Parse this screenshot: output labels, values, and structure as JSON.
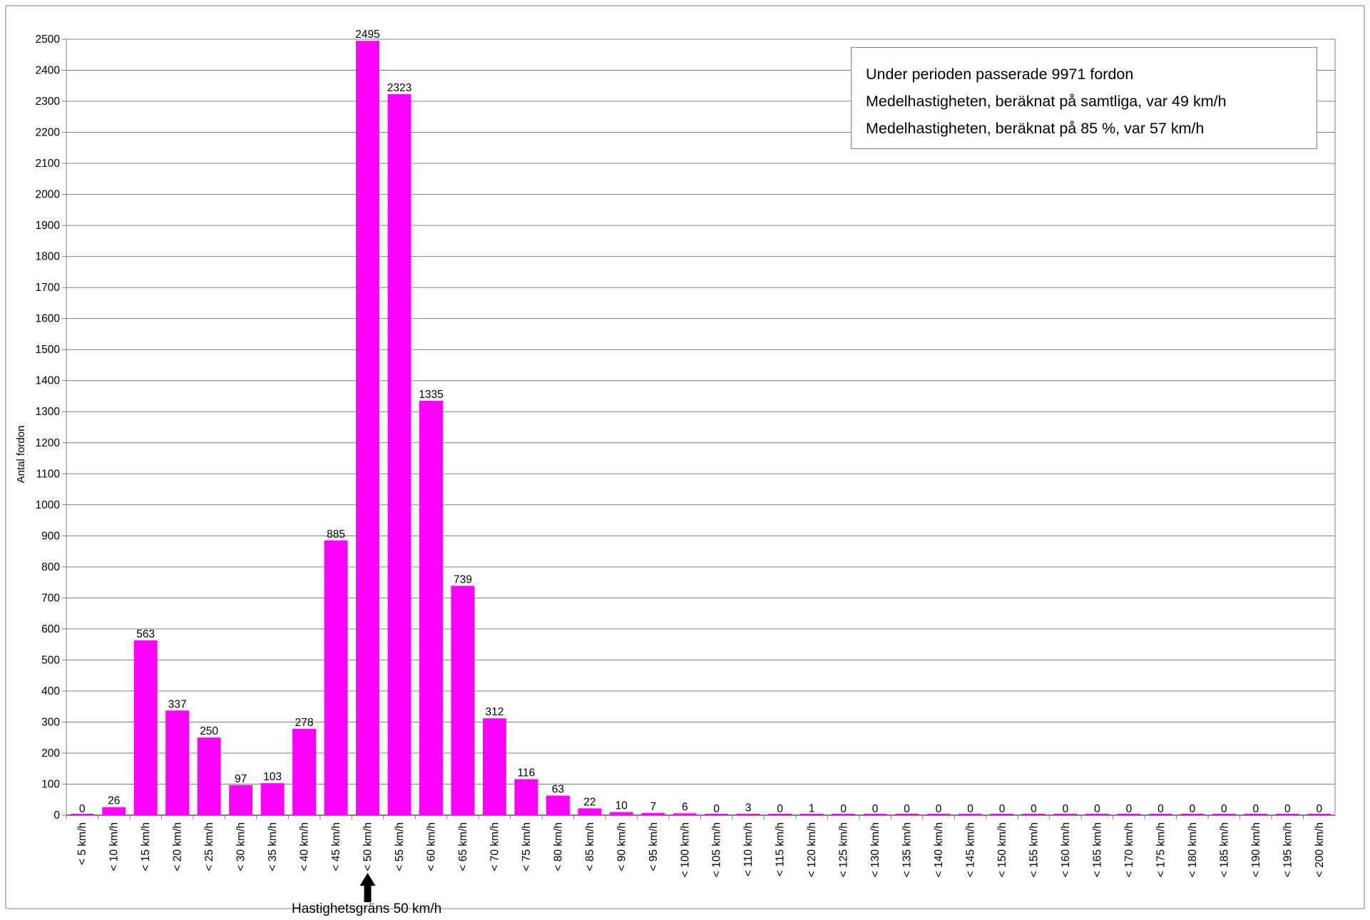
{
  "chart_data": {
    "type": "bar",
    "ylabel": "Antal fordon",
    "xlabel": "",
    "ylim": [
      0,
      2500
    ],
    "yticks": [
      0,
      100,
      200,
      300,
      400,
      500,
      600,
      700,
      800,
      900,
      1000,
      1100,
      1200,
      1300,
      1400,
      1500,
      1600,
      1700,
      1800,
      1900,
      2000,
      2100,
      2200,
      2300,
      2400,
      2500
    ],
    "grid": true,
    "bar_color": "#ff00ff",
    "categories": [
      "< 5 km/h",
      "< 10 km/h",
      "< 15 km/h",
      "< 20 km/h",
      "< 25 km/h",
      "< 30 km/h",
      "< 35 km/h",
      "< 40 km/h",
      "< 45 km/h",
      "< 50 km/h",
      "< 55 km/h",
      "< 60 km/h",
      "< 65 km/h",
      "< 70 km/h",
      "< 75 km/h",
      "< 80 km/h",
      "< 85 km/h",
      "< 90 km/h",
      "< 95 km/h",
      "< 100 km/h",
      "< 105 km/h",
      "< 110 km/h",
      "< 115 km/h",
      "< 120 km/h",
      "< 125 km/h",
      "< 130 km/h",
      "< 135 km/h",
      "< 140 km/h",
      "< 145 km/h",
      "< 150 km/h",
      "< 155 km/h",
      "< 160 km/h",
      "< 165 km/h",
      "< 170 km/h",
      "< 175 km/h",
      "< 180 km/h",
      "< 185 km/h",
      "< 190 km/h",
      "< 195 km/h",
      "< 200 km/h"
    ],
    "values": [
      0,
      26,
      563,
      337,
      250,
      97,
      103,
      278,
      885,
      2495,
      2323,
      1335,
      739,
      312,
      116,
      63,
      22,
      10,
      7,
      6,
      0,
      3,
      0,
      1,
      0,
      0,
      0,
      0,
      0,
      0,
      0,
      0,
      0,
      0,
      0,
      0,
      0,
      0,
      0,
      0
    ],
    "info_box": {
      "line1": "Under perioden passerade 9971 fordon",
      "line2": "Medelhastigheten, beräknat på samtliga, var 49 km/h",
      "line3": "Medelhastigheten, beräknat på 85 %, var 57 km/h"
    },
    "annotation": {
      "text": "Hastighetsgräns 50 km/h",
      "category": "< 50 km/h"
    }
  }
}
